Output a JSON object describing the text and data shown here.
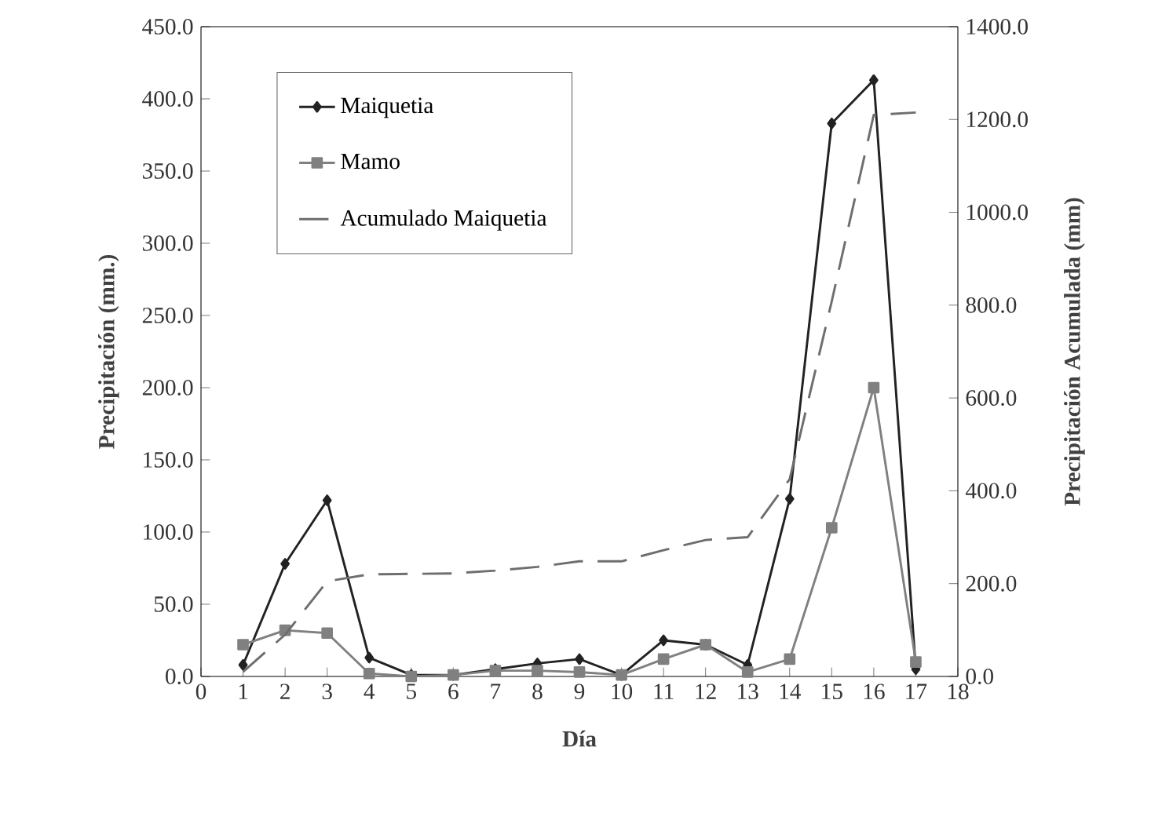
{
  "chart_data": {
    "type": "line",
    "xlabel": "Día",
    "ylabel": "Precipitación (mm.)",
    "y2label": "Precipitación Acumulada (mm)",
    "x": [
      1,
      2,
      3,
      4,
      5,
      6,
      7,
      8,
      9,
      10,
      11,
      12,
      13,
      14,
      15,
      16,
      17
    ],
    "series": [
      {
        "name": "Maiquetia",
        "color": "#222222",
        "marker": "diamond",
        "line_style": "solid",
        "values": [
          8,
          78,
          122,
          13,
          1,
          1,
          5,
          9,
          12,
          1,
          25,
          22,
          8,
          123,
          383,
          413,
          5
        ]
      },
      {
        "name": "Mamo",
        "color": "#808080",
        "marker": "square",
        "line_style": "solid",
        "values": [
          22,
          32,
          30,
          2,
          0,
          1,
          4,
          4,
          3,
          1,
          12,
          22,
          3,
          12,
          103,
          200,
          10
        ]
      },
      {
        "name": "Acumulado Maiquetia",
        "color": "#6e6e6e",
        "marker": "none",
        "line_style": "dashed",
        "axis": "y2",
        "values": [
          10,
          90,
          205,
          220,
          221,
          222,
          228,
          236,
          248,
          248,
          272,
          294,
          300,
          425,
          808,
          1210,
          1215
        ]
      }
    ],
    "xlim": [
      0,
      18
    ],
    "xticks": [
      0,
      1,
      2,
      3,
      4,
      5,
      6,
      7,
      8,
      9,
      10,
      11,
      12,
      13,
      14,
      15,
      16,
      17,
      18
    ],
    "ylim": [
      0,
      450
    ],
    "yticks": [
      {
        "value": 0,
        "label": "0.0"
      },
      {
        "value": 50,
        "label": "50.0"
      },
      {
        "value": 100,
        "label": "100.0"
      },
      {
        "value": 150,
        "label": "150.0"
      },
      {
        "value": 200,
        "label": "200.0"
      },
      {
        "value": 250,
        "label": "250.0"
      },
      {
        "value": 300,
        "label": "300.0"
      },
      {
        "value": 350,
        "label": "350.0"
      },
      {
        "value": 400,
        "label": "400.0"
      },
      {
        "value": 450,
        "label": "450.0"
      }
    ],
    "y2lim": [
      0,
      1400
    ],
    "y2ticks": [
      {
        "value": 0,
        "label": "0.0"
      },
      {
        "value": 200,
        "label": "200.0"
      },
      {
        "value": 400,
        "label": "400.0"
      },
      {
        "value": 600,
        "label": "600.0"
      },
      {
        "value": 800,
        "label": "800.0"
      },
      {
        "value": 1000,
        "label": "1000.0"
      },
      {
        "value": 1200,
        "label": "1200.0"
      },
      {
        "value": 1400,
        "label": "1400.0"
      }
    ],
    "grid": false,
    "legend": "top left"
  }
}
